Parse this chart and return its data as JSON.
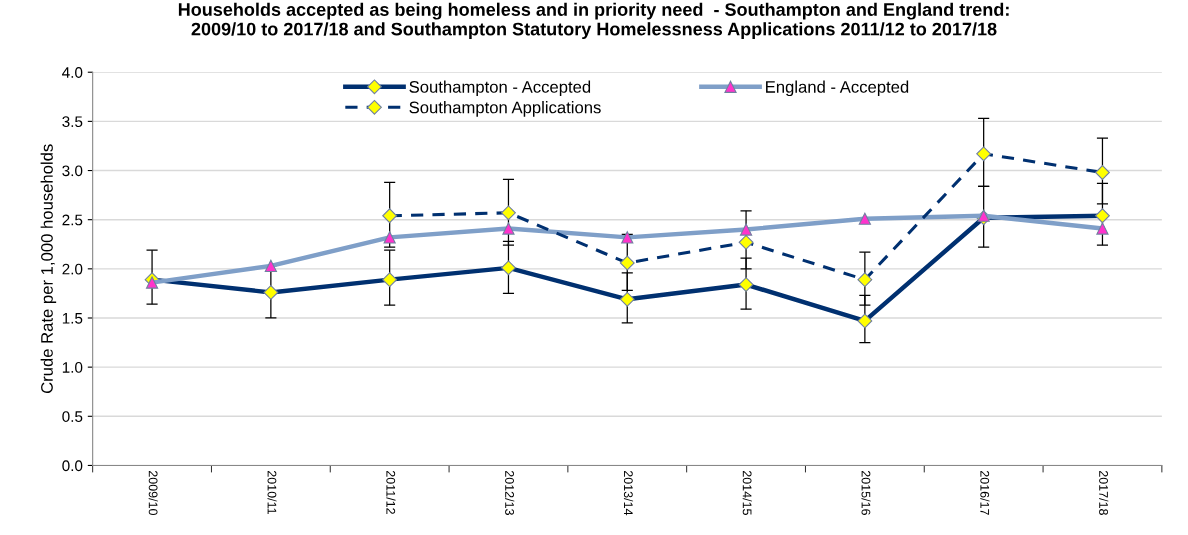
{
  "chart_data": {
    "type": "line",
    "title": "Households accepted as being homeless and in priority need  - Southampton and England trend:\n2009/10 to 2017/18 and Southampton Statutory Homelessness Applications 2011/12 to 2017/18",
    "ylabel": "Crude Rate per 1,000 households",
    "categories": [
      "2009/10",
      "2010/11",
      "2011/12",
      "2012/13",
      "2013/14",
      "2014/15",
      "2015/16",
      "2016/17",
      "2017/18"
    ],
    "series": [
      {
        "name": "Southampton - Accepted",
        "color": "#003070",
        "marker": "diamond",
        "line_style": "solid",
        "values": [
          1.89,
          1.76,
          1.89,
          2.01,
          1.69,
          1.84,
          1.47,
          2.52,
          2.54
        ],
        "errors": [
          [
            1.64,
            2.19
          ],
          [
            1.5,
            2.03
          ],
          [
            1.63,
            2.19
          ],
          [
            1.75,
            2.28
          ],
          [
            1.45,
            1.96
          ],
          [
            1.59,
            2.11
          ],
          [
            1.25,
            1.73
          ],
          [
            2.22,
            2.84
          ],
          [
            2.24,
            2.87
          ]
        ]
      },
      {
        "name": "England - Accepted",
        "color": "#7f9fc8",
        "marker": "triangle",
        "line_style": "solid",
        "values": [
          1.86,
          2.03,
          2.32,
          2.41,
          2.32,
          2.4,
          2.51,
          2.54,
          2.41
        ]
      },
      {
        "name": "Southampton Applications",
        "color": "#003070",
        "marker": "diamond",
        "line_style": "dashed",
        "values": [
          null,
          null,
          2.54,
          2.57,
          2.06,
          2.27,
          1.89,
          3.17,
          2.98
        ],
        "errors": [
          null,
          null,
          [
            2.22,
            2.88
          ],
          [
            2.24,
            2.91
          ],
          [
            1.78,
            2.35
          ],
          [
            2.0,
            2.59
          ],
          [
            1.63,
            2.17
          ],
          [
            2.84,
            3.53
          ],
          [
            2.66,
            3.33
          ]
        ]
      }
    ],
    "ylim": [
      0,
      4
    ],
    "yticks": [
      {
        "value": 0,
        "label": "0.0"
      },
      0.5,
      {
        "value": 1,
        "label": "1.0"
      },
      1.5,
      {
        "value": 2,
        "label": "2.0"
      },
      2.5,
      {
        "value": 3,
        "label": "3.0"
      },
      3.5,
      {
        "value": 4,
        "label": "4.0"
      }
    ],
    "grid": "y",
    "legend": "top"
  }
}
